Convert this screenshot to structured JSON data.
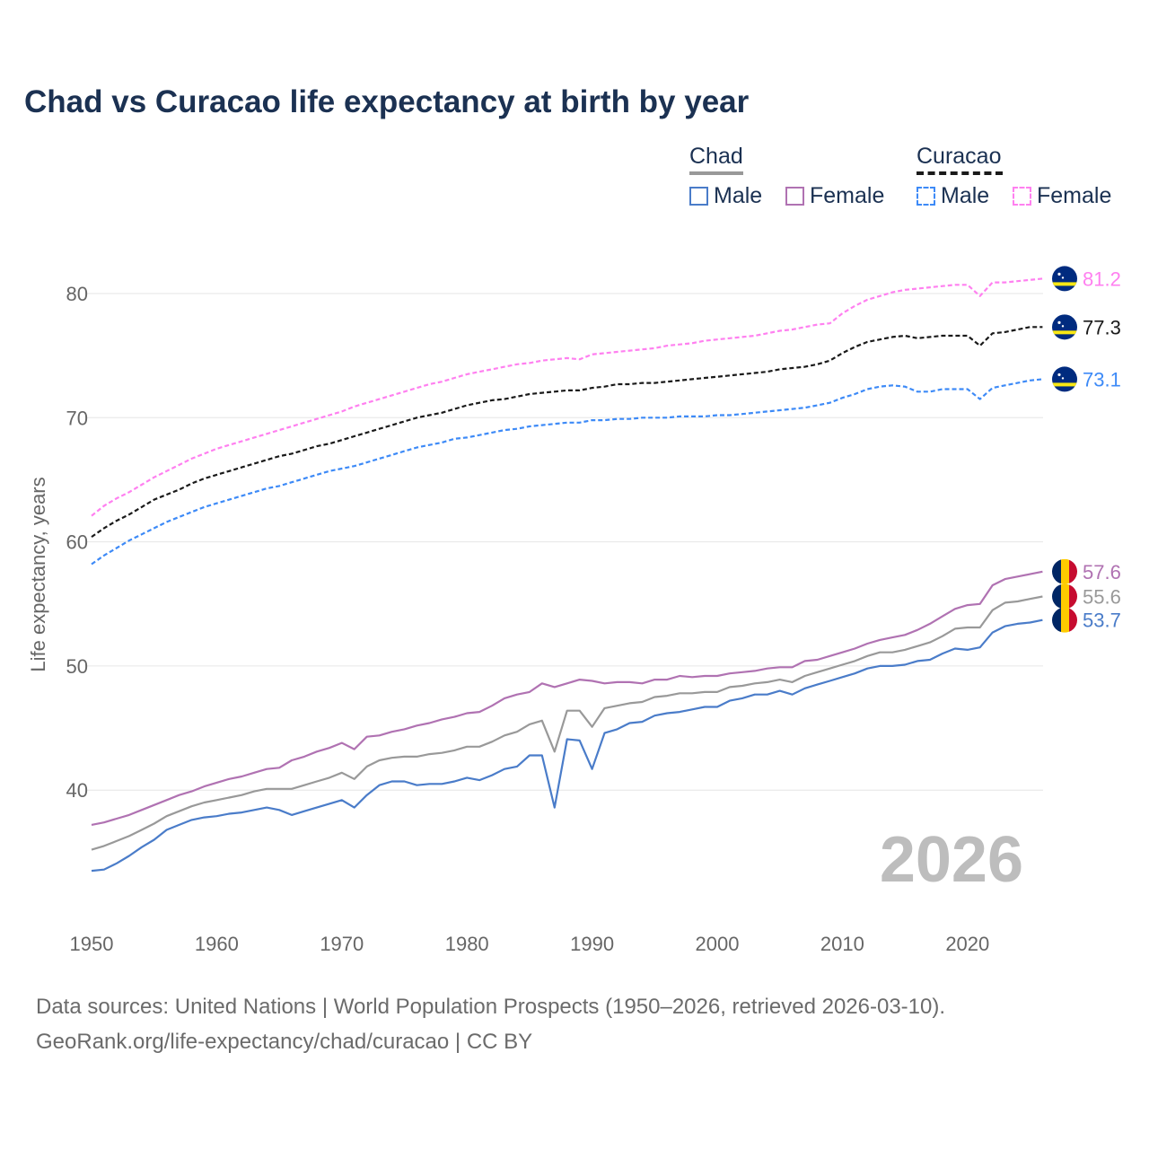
{
  "title": "Chad vs Curacao life expectancy at birth by year",
  "legend": {
    "groups": [
      {
        "label": "Chad",
        "items": [
          {
            "label": "Male"
          },
          {
            "label": "Female"
          }
        ]
      },
      {
        "label": "Curacao",
        "items": [
          {
            "label": "Male"
          },
          {
            "label": "Female"
          }
        ]
      }
    ]
  },
  "year_watermark": "2026",
  "footer": {
    "line1": "Data sources: United Nations | World Population Prospects (1950–2026, retrieved 2026-03-10).",
    "line2": "GeoRank.org/life-expectancy/chad/curacao | CC BY"
  },
  "chart_data": {
    "type": "line",
    "title": "Chad vs Curacao life expectancy at birth by year",
    "xlabel": "",
    "ylabel": "Life expectancy, years",
    "xlim": [
      1950,
      2026
    ],
    "ylim": [
      32,
      84
    ],
    "xticks": [
      "1950",
      "1960",
      "1970",
      "1980",
      "1990",
      "2000",
      "2010",
      "2020"
    ],
    "yticks": [
      "40",
      "50",
      "60",
      "70",
      "80"
    ],
    "grid": true,
    "x_start": 1950,
    "series": [
      {
        "name": "Curacao Female",
        "country": "Curacao",
        "color": "#ff80f0",
        "dashed": true,
        "end_label": "81.2",
        "values": [
          62.1,
          62.9,
          63.5,
          64.0,
          64.6,
          65.2,
          65.7,
          66.2,
          66.7,
          67.1,
          67.5,
          67.8,
          68.1,
          68.4,
          68.7,
          69.0,
          69.3,
          69.6,
          69.9,
          70.2,
          70.5,
          70.9,
          71.2,
          71.5,
          71.8,
          72.1,
          72.4,
          72.7,
          72.9,
          73.2,
          73.5,
          73.7,
          73.9,
          74.1,
          74.3,
          74.4,
          74.6,
          74.7,
          74.8,
          74.7,
          75.1,
          75.2,
          75.3,
          75.4,
          75.5,
          75.6,
          75.8,
          75.9,
          76.0,
          76.2,
          76.3,
          76.4,
          76.5,
          76.6,
          76.8,
          77.0,
          77.1,
          77.3,
          77.5,
          77.6,
          78.4,
          79.0,
          79.5,
          79.8,
          80.1,
          80.3,
          80.4,
          80.5,
          80.6,
          80.7,
          80.7,
          79.8,
          80.9,
          80.9,
          81.0,
          81.1,
          81.2
        ]
      },
      {
        "name": "Curacao",
        "country": "Curacao",
        "color": "#1a1a1a",
        "dashed": true,
        "end_label": "77.3",
        "values": [
          60.4,
          61.1,
          61.7,
          62.2,
          62.8,
          63.4,
          63.8,
          64.2,
          64.7,
          65.1,
          65.4,
          65.7,
          66.0,
          66.3,
          66.6,
          66.9,
          67.1,
          67.4,
          67.7,
          67.9,
          68.2,
          68.5,
          68.8,
          69.1,
          69.4,
          69.7,
          70.0,
          70.2,
          70.4,
          70.7,
          71.0,
          71.2,
          71.4,
          71.5,
          71.7,
          71.9,
          72.0,
          72.1,
          72.2,
          72.2,
          72.4,
          72.5,
          72.7,
          72.7,
          72.8,
          72.8,
          72.9,
          73.0,
          73.1,
          73.2,
          73.3,
          73.4,
          73.5,
          73.6,
          73.7,
          73.9,
          74.0,
          74.1,
          74.3,
          74.6,
          75.2,
          75.7,
          76.1,
          76.3,
          76.5,
          76.6,
          76.4,
          76.5,
          76.6,
          76.6,
          76.6,
          75.8,
          76.8,
          76.9,
          77.1,
          77.3,
          77.3
        ]
      },
      {
        "name": "Curacao Male",
        "country": "Curacao",
        "color": "#3d8af7",
        "dashed": true,
        "end_label": "73.1",
        "values": [
          58.2,
          58.9,
          59.5,
          60.1,
          60.6,
          61.1,
          61.6,
          62.0,
          62.4,
          62.8,
          63.1,
          63.4,
          63.7,
          64.0,
          64.3,
          64.5,
          64.8,
          65.1,
          65.4,
          65.7,
          65.9,
          66.1,
          66.4,
          66.7,
          67.0,
          67.3,
          67.6,
          67.8,
          68.0,
          68.3,
          68.4,
          68.6,
          68.8,
          69.0,
          69.1,
          69.3,
          69.4,
          69.5,
          69.6,
          69.6,
          69.8,
          69.8,
          69.9,
          69.9,
          70.0,
          70.0,
          70.0,
          70.1,
          70.1,
          70.1,
          70.2,
          70.2,
          70.3,
          70.4,
          70.5,
          70.6,
          70.7,
          70.8,
          71.0,
          71.2,
          71.6,
          71.9,
          72.3,
          72.5,
          72.6,
          72.5,
          72.1,
          72.1,
          72.3,
          72.3,
          72.3,
          71.5,
          72.4,
          72.6,
          72.8,
          73.0,
          73.1
        ]
      },
      {
        "name": "Chad Female",
        "country": "Chad",
        "color": "#b072b2",
        "dashed": false,
        "end_label": "57.6",
        "values": [
          37.2,
          37.4,
          37.7,
          38.0,
          38.4,
          38.8,
          39.2,
          39.6,
          39.9,
          40.3,
          40.6,
          40.9,
          41.1,
          41.4,
          41.7,
          41.8,
          42.4,
          42.7,
          43.1,
          43.4,
          43.8,
          43.3,
          44.3,
          44.4,
          44.7,
          44.9,
          45.2,
          45.4,
          45.7,
          45.9,
          46.2,
          46.3,
          46.8,
          47.4,
          47.7,
          47.9,
          48.6,
          48.3,
          48.6,
          48.9,
          48.8,
          48.6,
          48.7,
          48.7,
          48.6,
          48.9,
          48.9,
          49.2,
          49.1,
          49.2,
          49.2,
          49.4,
          49.5,
          49.6,
          49.8,
          49.9,
          49.9,
          50.4,
          50.5,
          50.8,
          51.1,
          51.4,
          51.8,
          52.1,
          52.3,
          52.5,
          52.9,
          53.4,
          54.0,
          54.6,
          54.9,
          55.0,
          56.5,
          57.0,
          57.2,
          57.4,
          57.6
        ]
      },
      {
        "name": "Chad",
        "country": "Chad",
        "color": "#999999",
        "dashed": false,
        "end_label": "55.6",
        "values": [
          35.2,
          35.5,
          35.9,
          36.3,
          36.8,
          37.3,
          37.9,
          38.3,
          38.7,
          39.0,
          39.2,
          39.4,
          39.6,
          39.9,
          40.1,
          40.1,
          40.1,
          40.4,
          40.7,
          41.0,
          41.4,
          40.9,
          41.9,
          42.4,
          42.6,
          42.7,
          42.7,
          42.9,
          43.0,
          43.2,
          43.5,
          43.5,
          43.9,
          44.4,
          44.7,
          45.3,
          45.6,
          43.1,
          46.4,
          46.4,
          45.1,
          46.6,
          46.8,
          47.0,
          47.1,
          47.5,
          47.6,
          47.8,
          47.8,
          47.9,
          47.9,
          48.3,
          48.4,
          48.6,
          48.7,
          48.9,
          48.7,
          49.2,
          49.5,
          49.8,
          50.1,
          50.4,
          50.8,
          51.1,
          51.1,
          51.3,
          51.6,
          51.9,
          52.4,
          53.0,
          53.1,
          53.1,
          54.5,
          55.1,
          55.2,
          55.4,
          55.6
        ]
      },
      {
        "name": "Chad Male",
        "country": "Chad",
        "color": "#4a7cc9",
        "dashed": false,
        "end_label": "53.7",
        "values": [
          33.5,
          33.6,
          34.1,
          34.7,
          35.4,
          36.0,
          36.8,
          37.2,
          37.6,
          37.8,
          37.9,
          38.1,
          38.2,
          38.4,
          38.6,
          38.4,
          38.0,
          38.3,
          38.6,
          38.9,
          39.2,
          38.6,
          39.6,
          40.4,
          40.7,
          40.7,
          40.4,
          40.5,
          40.5,
          40.7,
          41.0,
          40.8,
          41.2,
          41.7,
          41.9,
          42.8,
          42.8,
          38.6,
          44.1,
          44.0,
          41.7,
          44.6,
          44.9,
          45.4,
          45.5,
          46.0,
          46.2,
          46.3,
          46.5,
          46.7,
          46.7,
          47.2,
          47.4,
          47.7,
          47.7,
          48.0,
          47.7,
          48.2,
          48.5,
          48.8,
          49.1,
          49.4,
          49.8,
          50.0,
          50.0,
          50.1,
          50.4,
          50.5,
          51.0,
          51.4,
          51.3,
          51.5,
          52.7,
          53.2,
          53.4,
          53.5,
          53.7
        ]
      }
    ]
  }
}
